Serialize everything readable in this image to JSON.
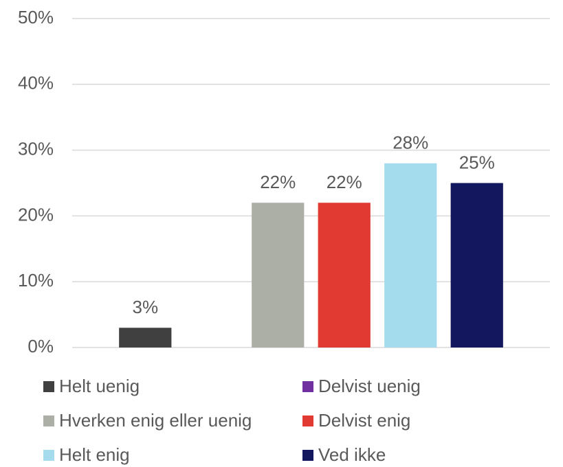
{
  "chart_data": {
    "type": "bar",
    "categories": [
      null
    ],
    "series": [
      {
        "name": "Helt uenig",
        "color": "#404040",
        "values": [
          3
        ],
        "value_labels": [
          "3%"
        ]
      },
      {
        "name": "Delvist uenig",
        "color": "#7030a0",
        "values": [
          null
        ],
        "value_labels": [
          null
        ]
      },
      {
        "name": "Hverken enig eller uenig",
        "color": "#abafa6",
        "values": [
          22
        ],
        "value_labels": [
          "22%"
        ]
      },
      {
        "name": "Delvist enig",
        "color": "#e03a33",
        "values": [
          22
        ],
        "value_labels": [
          "22%"
        ]
      },
      {
        "name": "Helt enig",
        "color": "#a4dcee",
        "values": [
          28
        ],
        "value_labels": [
          "28%"
        ]
      },
      {
        "name": "Ved ikke",
        "color": "#12175e",
        "values": [
          25
        ],
        "value_labels": [
          "25%"
        ]
      }
    ],
    "ylim": [
      0,
      50
    ],
    "yticks": [
      {
        "value": 0,
        "label": "0%"
      },
      {
        "value": 10,
        "label": "10%"
      },
      {
        "value": 20,
        "label": "20%"
      },
      {
        "value": 30,
        "label": "30%"
      },
      {
        "value": 40,
        "label": "40%"
      },
      {
        "value": 50,
        "label": "50%"
      }
    ],
    "grid": true,
    "legend": "bottom"
  }
}
